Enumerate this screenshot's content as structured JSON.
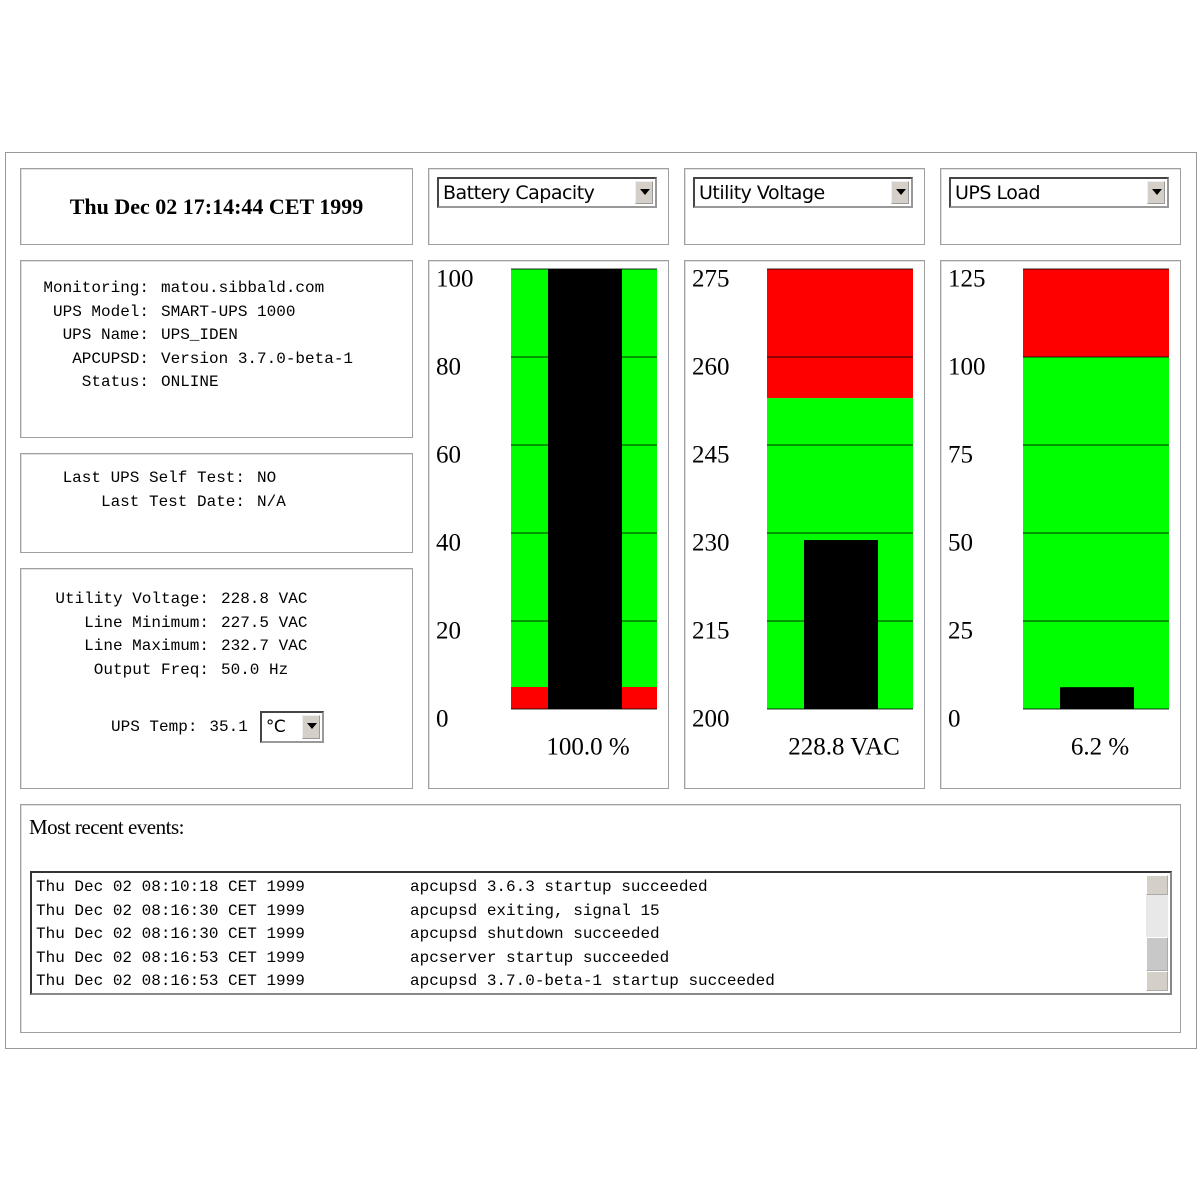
{
  "datetime": "Thu Dec 02 17:14:44 CET 1999",
  "info": [
    [
      "Monitoring:",
      "matou.sibbald.com"
    ],
    [
      "UPS Model:",
      "SMART-UPS 1000"
    ],
    [
      "UPS Name:",
      "UPS_IDEN"
    ],
    [
      "APCUPSD:",
      "Version 3.7.0-beta-1"
    ],
    [
      "Status:",
      "ONLINE"
    ]
  ],
  "selftest": [
    [
      "Last UPS Self Test:",
      "NO"
    ],
    [
      "Last Test Date:",
      "N/A"
    ]
  ],
  "power": [
    [
      "Utility Voltage:",
      "228.8 VAC"
    ],
    [
      "Line Minimum:",
      "227.5 VAC"
    ],
    [
      "Line Maximum:",
      "232.7 VAC"
    ],
    [
      "Output Freq:",
      "50.0 Hz"
    ]
  ],
  "temp": {
    "label": "UPS Temp:",
    "value": "35.1",
    "unit": "°C"
  },
  "gauges": [
    {
      "selector": "Battery Capacity",
      "ylim": [
        0,
        100
      ],
      "yticks": [
        0,
        20,
        40,
        60,
        80,
        100
      ],
      "value": 100.0,
      "value_label": "100.0 %",
      "bar_color": "#000000",
      "zones": [
        {
          "from": 0,
          "to": 5,
          "color": "#ff0000"
        },
        {
          "from": 5,
          "to": 100,
          "color": "#00ff00"
        }
      ]
    },
    {
      "selector": "Utility Voltage",
      "ylim": [
        200,
        275
      ],
      "yticks": [
        200,
        215,
        230,
        245,
        260,
        275
      ],
      "value": 228.8,
      "value_label": "228.8 VAC",
      "bar_color": "#000000",
      "zones": [
        {
          "from": 200,
          "to": 253,
          "color": "#00ff00"
        },
        {
          "from": 253,
          "to": 275,
          "color": "#ff0000"
        }
      ]
    },
    {
      "selector": "UPS Load",
      "ylim": [
        0,
        125
      ],
      "yticks": [
        0,
        25,
        50,
        75,
        100,
        125
      ],
      "value": 6.2,
      "value_label": "6.2 %",
      "bar_color": "#000000",
      "zones": [
        {
          "from": 0,
          "to": 100,
          "color": "#00ff00"
        },
        {
          "from": 100,
          "to": 125,
          "color": "#ff0000"
        }
      ]
    }
  ],
  "events": {
    "title": "Most recent events:",
    "rows": [
      [
        "Thu Dec 02 08:10:18 CET 1999",
        "apcupsd 3.6.3 startup succeeded"
      ],
      [
        "Thu Dec 02 08:16:30 CET 1999",
        "apcupsd exiting, signal 15"
      ],
      [
        "Thu Dec 02 08:16:30 CET 1999",
        "apcupsd shutdown succeeded"
      ],
      [
        "Thu Dec 02 08:16:53 CET 1999",
        "apcserver startup succeeded"
      ],
      [
        "Thu Dec 02 08:16:53 CET 1999",
        "apcupsd 3.7.0-beta-1 startup succeeded"
      ]
    ]
  }
}
